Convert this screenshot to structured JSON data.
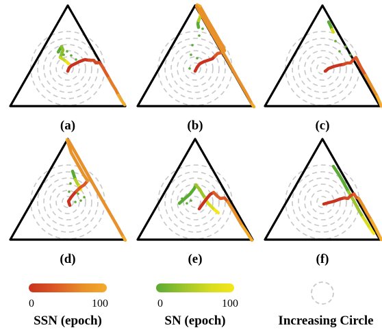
{
  "panels": [
    {
      "label": "(a)"
    },
    {
      "label": "(b)"
    },
    {
      "label": "(c)"
    },
    {
      "label": "(d)"
    },
    {
      "label": "(e)"
    },
    {
      "label": "(f)"
    }
  ],
  "legend": {
    "ssn": {
      "title": "SSN (epoch)",
      "min_label": "0",
      "max_label": "100",
      "colors": [
        "#c8321f",
        "#dc5a26",
        "#e8902a",
        "#f3ab2c"
      ]
    },
    "sn": {
      "title": "SN (epoch)",
      "min_label": "0",
      "max_label": "100",
      "colors": [
        "#5aab34",
        "#9cc42c",
        "#d8dc20",
        "#f5e71a"
      ]
    },
    "circle": {
      "title": "Increasing Circle",
      "color": "#c8c8c8"
    }
  },
  "colors": {
    "triangle": "#000000",
    "circles": "#c8c8c8"
  }
}
